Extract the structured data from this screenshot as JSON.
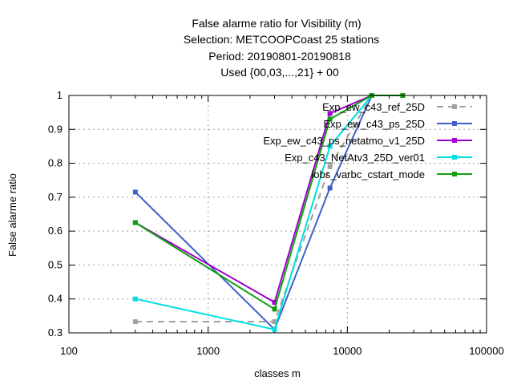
{
  "chart_data": {
    "type": "line",
    "title_lines": [
      "False alarme ratio  for Visibility (m)",
      "Selection: METCOOPCoast     25 stations",
      "Period: 20190801-20190818",
      "Used {00,03,...,21} + 00"
    ],
    "xlabel": "classes m",
    "ylabel": "False alarme ratio",
    "x_scale": "log",
    "xlim": [
      100,
      100000
    ],
    "ylim": [
      0.3,
      1.0
    ],
    "x_ticks": [
      100,
      1000,
      10000,
      100000
    ],
    "x_tick_labels": [
      "100",
      "1000",
      "10000",
      "100000"
    ],
    "y_ticks": [
      0.3,
      0.4,
      0.5,
      0.6,
      0.7,
      0.8,
      0.9,
      1.0
    ],
    "y_tick_labels": [
      "0.3",
      "0.4",
      "0.5",
      "0.6",
      "0.7",
      "0.8",
      "0.9",
      "1"
    ],
    "grid": true,
    "legend_position": "top-right",
    "series": [
      {
        "name": "Exp_ew_c43_ref_25D",
        "color": "#a0a0a0",
        "dashed": true,
        "x": [
          300,
          3000,
          7500,
          15000
        ],
        "y": [
          0.333,
          0.333,
          0.79,
          1.0
        ]
      },
      {
        "name": "Exp_ew_c43_ps_25D",
        "color": "#4060c8",
        "dashed": false,
        "x": [
          300,
          3000,
          7500,
          15000
        ],
        "y": [
          0.715,
          0.31,
          0.727,
          1.0
        ]
      },
      {
        "name": "Exp_ew_c43_ps_netatmo_v1_25D",
        "color": "#a000d0",
        "dashed": false,
        "x": [
          300,
          3000,
          7500,
          15000
        ],
        "y": [
          0.625,
          0.39,
          0.947,
          1.0
        ]
      },
      {
        "name": "Exp_c43_NetAtv3_25D_ver01",
        "color": "#00e0e0",
        "dashed": false,
        "x": [
          300,
          3000,
          7500,
          15000
        ],
        "y": [
          0.4,
          0.31,
          0.85,
          1.0
        ]
      },
      {
        "name": "iobs_varbc_cstart_mode",
        "color": "#10a010",
        "dashed": false,
        "x": [
          300,
          3000,
          7500,
          15000,
          25000
        ],
        "y": [
          0.625,
          0.37,
          0.93,
          1.0,
          1.0
        ]
      }
    ]
  }
}
